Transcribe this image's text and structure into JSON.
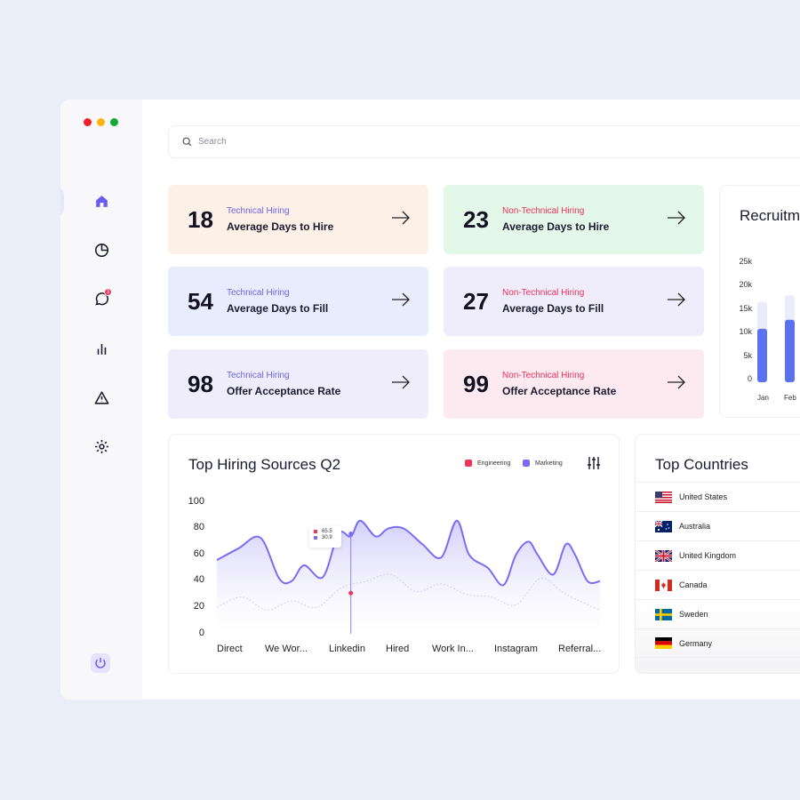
{
  "search": {
    "placeholder": "Search"
  },
  "nav": {
    "items": [
      "home-icon",
      "pie-chart-icon",
      "chat-icon",
      "bar-chart-icon",
      "warning-icon",
      "gear-icon"
    ],
    "chat_badge": "3",
    "footer": "power-icon"
  },
  "stats": [
    {
      "value": "18",
      "category": "Technical Hiring",
      "label": "Average Days to Hire"
    },
    {
      "value": "23",
      "category": "Non-Technical Hiring",
      "label": "Average Days to Hire"
    },
    {
      "value": "54",
      "category": "Technical Hiring",
      "label": "Average Days to Fill"
    },
    {
      "value": "27",
      "category": "Non-Technical Hiring",
      "label": "Average Days to Fill"
    },
    {
      "value": "98",
      "category": "Technical Hiring",
      "label": "Offer Acceptance Rate"
    },
    {
      "value": "99",
      "category": "Non-Technical Hiring",
      "label": "Offer Acceptance Rate"
    }
  ],
  "colors": {
    "engineering": "#f2335a",
    "marketing": "#7b6cf6",
    "bar_fg": "#5b72f0",
    "bar_bg": "#ebebfb"
  },
  "chart_data": [
    {
      "type": "area",
      "title": "Top Hiring Sources Q2",
      "categories": [
        "Direct",
        "We Wor...",
        "Linkedin",
        "Hired",
        "Work In...",
        "Instagram",
        "Referral..."
      ],
      "ylim": [
        0,
        100
      ],
      "yticks": [
        "0",
        "20",
        "40",
        "60",
        "80",
        "100"
      ],
      "legend": [
        "Engineering",
        "Marketing"
      ],
      "tooltip": {
        "engineering": "65.5",
        "marketing": "30.9"
      },
      "series": [
        {
          "name": "Marketing",
          "x": [
            0,
            0.35,
            0.7,
            1.0,
            1.2,
            1.4,
            1.7,
            1.95,
            2.15,
            2.3,
            2.55,
            2.75,
            3.0,
            3.3,
            3.6,
            3.85,
            4.05,
            4.35,
            4.6,
            4.8,
            5.0,
            5.15,
            5.4,
            5.6,
            5.75,
            5.95,
            6.15
          ],
          "values": [
            56,
            65,
            73,
            42,
            40,
            52,
            43,
            76,
            74,
            86,
            74,
            80,
            80,
            68,
            58,
            86,
            60,
            50,
            37,
            60,
            70,
            60,
            45,
            68,
            60,
            40,
            40
          ]
        },
        {
          "name": "Engineering",
          "x": [
            0,
            0.4,
            0.8,
            1.2,
            1.6,
            2.0,
            2.4,
            2.8,
            3.2,
            3.6,
            4.0,
            4.4,
            4.8,
            5.2,
            5.6,
            6.15
          ],
          "values": [
            20,
            28,
            18,
            25,
            20,
            35,
            40,
            45,
            32,
            38,
            30,
            28,
            22,
            42,
            30,
            18
          ]
        }
      ]
    },
    {
      "type": "bar",
      "title": "Recruitm",
      "categories": [
        "Jan",
        "Feb"
      ],
      "ylim": [
        0,
        25
      ],
      "yticks": [
        "0",
        "5k",
        "10k",
        "15k",
        "20k",
        "25k"
      ],
      "values": [
        11.3,
        13.2
      ],
      "background_values": [
        17,
        18.4
      ]
    }
  ],
  "countries": {
    "title": "Top Countries",
    "items": [
      "United States",
      "Australia",
      "United Kingdom",
      "Canada",
      "Sweden",
      "Germany"
    ]
  }
}
